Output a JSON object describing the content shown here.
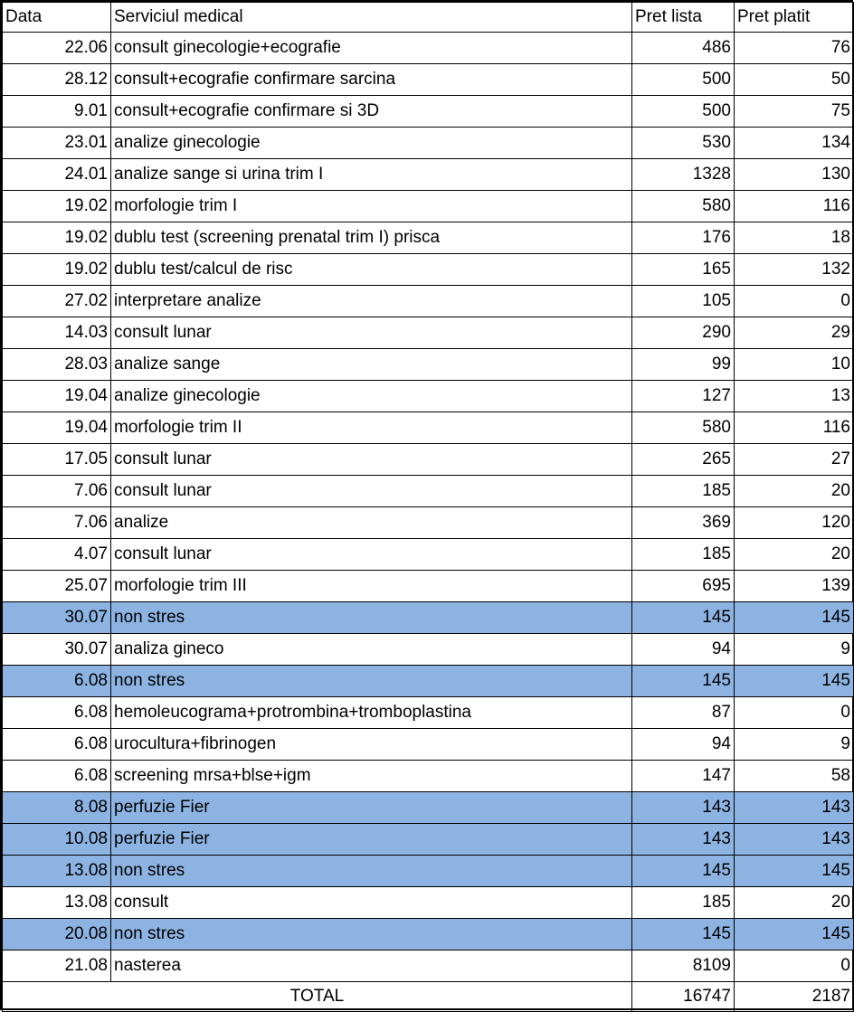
{
  "headers": {
    "date": "Data",
    "service": "Serviciul medical",
    "list_price": "Pret lista",
    "paid_price": "Pret platit"
  },
  "highlight_color": "#8db3e2",
  "rows": [
    {
      "date": "22.06",
      "service": "consult ginecologie+ecografie",
      "list": "486",
      "paid": "76",
      "highlight": false
    },
    {
      "date": "28.12",
      "service": "consult+ecografie confirmare sarcina",
      "list": "500",
      "paid": "50",
      "highlight": false
    },
    {
      "date": "9.01",
      "service": "consult+ecografie confirmare si 3D",
      "list": "500",
      "paid": "75",
      "highlight": false
    },
    {
      "date": "23.01",
      "service": "analize ginecologie",
      "list": "530",
      "paid": "134",
      "highlight": false
    },
    {
      "date": "24.01",
      "service": "analize sange si urina trim I",
      "list": "1328",
      "paid": "130",
      "highlight": false
    },
    {
      "date": "19.02",
      "service": "morfologie trim I",
      "list": "580",
      "paid": "116",
      "highlight": false
    },
    {
      "date": "19.02",
      "service": "dublu test (screening prenatal trim I) prisca",
      "list": "176",
      "paid": "18",
      "highlight": false
    },
    {
      "date": "19.02",
      "service": "dublu test/calcul de risc",
      "list": "165",
      "paid": "132",
      "highlight": false
    },
    {
      "date": "27.02",
      "service": "interpretare analize",
      "list": "105",
      "paid": "0",
      "highlight": false
    },
    {
      "date": "14.03",
      "service": "consult lunar",
      "list": "290",
      "paid": "29",
      "highlight": false
    },
    {
      "date": "28.03",
      "service": "analize sange",
      "list": "99",
      "paid": "10",
      "highlight": false
    },
    {
      "date": "19.04",
      "service": "analize ginecologie",
      "list": "127",
      "paid": "13",
      "highlight": false
    },
    {
      "date": "19.04",
      "service": "morfologie trim II",
      "list": "580",
      "paid": "116",
      "highlight": false
    },
    {
      "date": "17.05",
      "service": "consult lunar",
      "list": "265",
      "paid": "27",
      "highlight": false
    },
    {
      "date": "7.06",
      "service": "consult lunar",
      "list": "185",
      "paid": "20",
      "highlight": false
    },
    {
      "date": "7.06",
      "service": "analize",
      "list": "369",
      "paid": "120",
      "highlight": false
    },
    {
      "date": "4.07",
      "service": "consult lunar",
      "list": "185",
      "paid": "20",
      "highlight": false
    },
    {
      "date": "25.07",
      "service": "morfologie trim III",
      "list": "695",
      "paid": "139",
      "highlight": false
    },
    {
      "date": "30.07",
      "service": "non stres",
      "list": "145",
      "paid": "145",
      "highlight": true
    },
    {
      "date": "30.07",
      "service": "analiza gineco",
      "list": "94",
      "paid": "9",
      "highlight": false
    },
    {
      "date": "6.08",
      "service": "non stres",
      "list": "145",
      "paid": "145",
      "highlight": true
    },
    {
      "date": "6.08",
      "service": "hemoleucograma+protrombina+tromboplastina",
      "list": "87",
      "paid": "0",
      "highlight": false
    },
    {
      "date": "6.08",
      "service": "urocultura+fibrinogen",
      "list": "94",
      "paid": "9",
      "highlight": false
    },
    {
      "date": "6.08",
      "service": "screening mrsa+blse+igm",
      "list": "147",
      "paid": "58",
      "highlight": false
    },
    {
      "date": "8.08",
      "service": "perfuzie Fier",
      "list": "143",
      "paid": "143",
      "highlight": true
    },
    {
      "date": "10.08",
      "service": "perfuzie Fier",
      "list": "143",
      "paid": "143",
      "highlight": true
    },
    {
      "date": "13.08",
      "service": "non stres",
      "list": "145",
      "paid": "145",
      "highlight": true
    },
    {
      "date": "13.08",
      "service": "consult",
      "list": "185",
      "paid": "20",
      "highlight": false
    },
    {
      "date": "20.08",
      "service": "non stres",
      "list": "145",
      "paid": "145",
      "highlight": true
    },
    {
      "date": "21.08",
      "service": "nasterea",
      "list": "8109",
      "paid": "0",
      "highlight": false
    }
  ],
  "total": {
    "label": "TOTAL",
    "list": "16747",
    "paid": "2187"
  }
}
